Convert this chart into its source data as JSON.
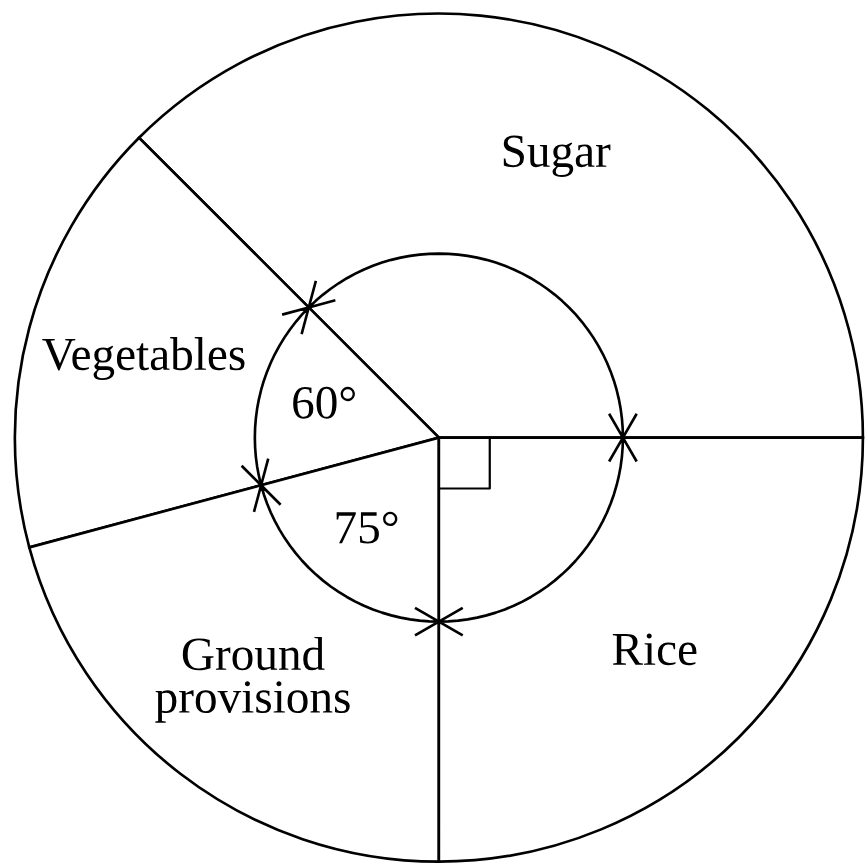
{
  "chart_data": {
    "type": "pie",
    "categories": [
      "Sugar",
      "Vegetables",
      "Ground\nprovisions",
      "Rice"
    ],
    "values": [
      135,
      60,
      75,
      90
    ],
    "colors": [
      "#ffffff",
      "#ffffff",
      "#ffffff",
      "#ffffff"
    ],
    "value_labels": [
      null,
      "60°",
      "75°",
      null
    ]
  }
}
